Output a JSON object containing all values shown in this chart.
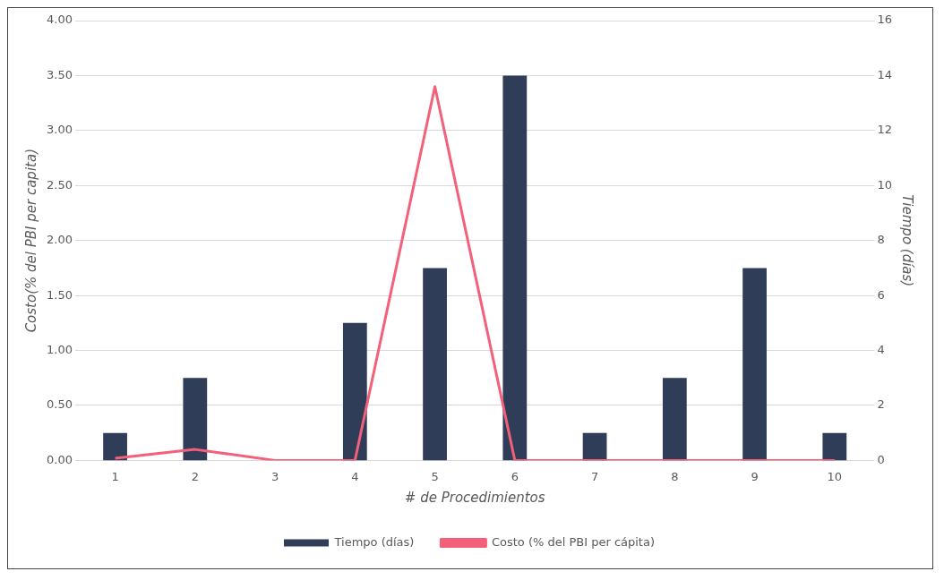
{
  "chart_data": {
    "type": "bar",
    "xlabel": "# de Procedimientos",
    "ylabel": "Costo(% del PBI per capita)",
    "y2label": "Tiempo (días)",
    "categories": [
      "1",
      "2",
      "3",
      "4",
      "5",
      "6",
      "7",
      "8",
      "9",
      "10"
    ],
    "series": [
      {
        "name": "Tiempo (días)",
        "axis": "y2",
        "color": "#2f3d58",
        "values": [
          1,
          3,
          0,
          5,
          7,
          14,
          1,
          3,
          7,
          1
        ]
      },
      {
        "name": "Costo (% del PBI per cápita)",
        "type": "line",
        "axis": "y",
        "color": "#f2607a",
        "values": [
          0.02,
          0.1,
          0,
          0,
          3.4,
          0,
          0,
          0,
          0,
          0
        ]
      }
    ],
    "ylim": [
      0,
      4
    ],
    "yticks": [
      {
        "value": 0,
        "label": "0.00"
      },
      {
        "value": 0.5,
        "label": "0.50"
      },
      {
        "value": 1,
        "label": "1.00"
      },
      {
        "value": 1.5,
        "label": "1.50"
      },
      {
        "value": 2,
        "label": "2.00"
      },
      {
        "value": 2.5,
        "label": "2.50"
      },
      {
        "value": 3,
        "label": "3.00"
      },
      {
        "value": 3.5,
        "label": "3.50"
      },
      {
        "value": 4,
        "label": "4.00"
      }
    ],
    "y2lim": [
      0,
      16
    ],
    "y2ticks": [
      0,
      2,
      4,
      6,
      8,
      10,
      12,
      14,
      16
    ],
    "grid": "y",
    "legend": "bottom",
    "marker": "none",
    "line_style": "solid"
  }
}
